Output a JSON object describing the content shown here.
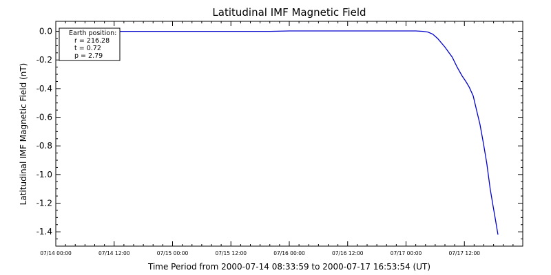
{
  "chart_data": {
    "type": "line",
    "title": "Latitudinal IMF Magnetic Field",
    "ylabel": "Latitudinal IMF Magnetic Field (nT)",
    "xlabel": "Time Period from 2000-07-14 08:33:59 to 2000-07-17 16:53:54 (UT)",
    "x_ticks": [
      "07/14 00:00",
      "07/14 12:00",
      "07/15 00:00",
      "07/15 12:00",
      "07/16 00:00",
      "07/16 12:00",
      "07/17 00:00",
      "07/17 12:00"
    ],
    "y_ticks": [
      "0.0",
      "-0.2",
      "-0.4",
      "-0.6",
      "-0.8",
      "-1.0",
      "-1.2",
      "-1.4"
    ],
    "xlim_hours": [
      0,
      96
    ],
    "ylim": [
      -1.5,
      0.07
    ],
    "grid": false,
    "series": [
      {
        "color": "#0000cc",
        "x_hours": [
          8.57,
          12,
          20,
          28,
          36,
          44,
          48,
          52,
          60,
          68,
          72,
          74,
          75.5,
          76.5,
          77.5,
          78.5,
          80,
          81.5,
          82.5,
          83.5,
          84.3,
          85,
          85.8,
          86.5,
          87.2,
          87.9,
          88.6,
          89.3,
          89.9,
          90.4,
          90.9
        ],
        "y": [
          0.0,
          0.0,
          0.0,
          0.0,
          0.0,
          0.0,
          0.003,
          0.003,
          0.003,
          0.003,
          0.003,
          0.003,
          0.0,
          -0.005,
          -0.02,
          -0.05,
          -0.11,
          -0.18,
          -0.25,
          -0.31,
          -0.35,
          -0.39,
          -0.45,
          -0.55,
          -0.65,
          -0.78,
          -0.92,
          -1.1,
          -1.22,
          -1.32,
          -1.42
        ]
      }
    ],
    "legend": {
      "heading": "Earth position:",
      "lines": [
        "r = 216.28",
        "t = 0.72",
        "p = 2.79"
      ]
    }
  }
}
